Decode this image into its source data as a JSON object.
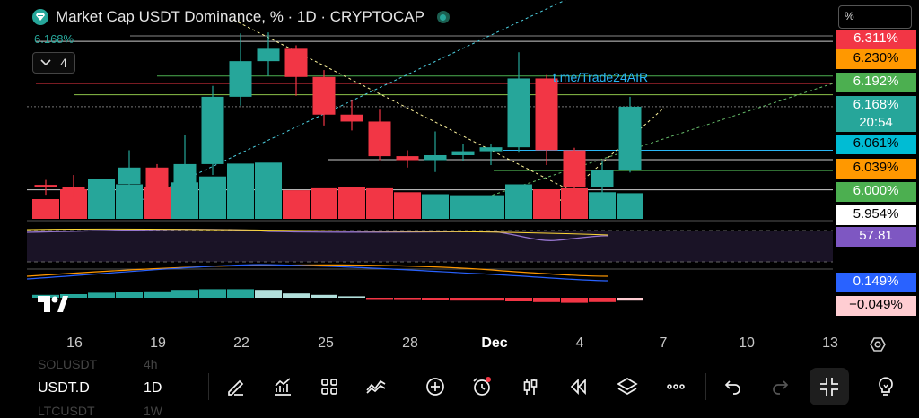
{
  "header": {
    "title": "Market Cap USDT Dominance, % · 1D · CRYPTOCAP",
    "legend_value": "6.168%",
    "indicator_count": "4",
    "scale_button": "%"
  },
  "annotation": "t.me/Trade24AIR",
  "price_tags": [
    {
      "label": "6.311%",
      "bg": "#f23645",
      "fg": "#ffffff"
    },
    {
      "label": "6.230%",
      "bg": "#ff9800",
      "fg": "#000000"
    },
    {
      "label": "6.192%",
      "bg": "#4caf50",
      "fg": "#ffffff"
    },
    {
      "label": "6.168%",
      "bg": "#26a69a",
      "fg": "#ffffff"
    },
    {
      "label": "20:54",
      "bg": "#26a69a",
      "fg": "#ffffff"
    },
    {
      "label": "6.061%",
      "bg": "#00bcd4",
      "fg": "#000000"
    },
    {
      "label": "6.039%",
      "bg": "#ff9800",
      "fg": "#000000"
    },
    {
      "label": "6.000%",
      "bg": "#4caf50",
      "fg": "#ffffff"
    },
    {
      "label": "5.954%",
      "bg": "#ffffff",
      "fg": "#000000"
    },
    {
      "label": "57.81",
      "bg": "#7e57c2",
      "fg": "#ffffff"
    },
    {
      "label": "0.149%",
      "bg": "#2962ff",
      "fg": "#ffffff"
    },
    {
      "label": "−0.049%",
      "bg": "#ffcdd2",
      "fg": "#000000"
    }
  ],
  "x_axis": [
    "16",
    "19",
    "22",
    "25",
    "28",
    "Dec",
    "4",
    "7",
    "10",
    "13"
  ],
  "bottom_bar": {
    "symbol": "USDT.D",
    "interval": "1D",
    "ghost_above_symbol": "SOLUSDT",
    "ghost_above_interval": "4h",
    "ghost_below_symbol": "LTCUSDT",
    "ghost_below_interval": "1W"
  },
  "colors": {
    "up": "#26a69a",
    "down": "#f23645"
  },
  "chart_data": {
    "type": "candlestick",
    "unit": "%",
    "candles": [
      {
        "o": 6.01,
        "h": 6.02,
        "l": 5.99,
        "c": 6.005
      },
      {
        "o": 6.005,
        "h": 6.03,
        "l": 5.985,
        "c": 6.0
      },
      {
        "o": 6.0,
        "h": 6.02,
        "l": 5.975,
        "c": 6.012
      },
      {
        "o": 6.012,
        "h": 6.08,
        "l": 5.99,
        "c": 6.045
      },
      {
        "o": 6.045,
        "h": 6.052,
        "l": 5.96,
        "c": 5.988
      },
      {
        "o": 5.988,
        "h": 6.11,
        "l": 5.975,
        "c": 6.052
      },
      {
        "o": 6.052,
        "h": 6.21,
        "l": 6.03,
        "c": 6.188
      },
      {
        "o": 6.188,
        "h": 6.316,
        "l": 6.17,
        "c": 6.26
      },
      {
        "o": 6.26,
        "h": 6.318,
        "l": 6.23,
        "c": 6.285
      },
      {
        "o": 6.285,
        "h": 6.292,
        "l": 6.19,
        "c": 6.228
      },
      {
        "o": 6.228,
        "h": 6.242,
        "l": 6.13,
        "c": 6.152
      },
      {
        "o": 6.152,
        "h": 6.182,
        "l": 6.12,
        "c": 6.138
      },
      {
        "o": 6.138,
        "h": 6.162,
        "l": 6.06,
        "c": 6.068
      },
      {
        "o": 6.068,
        "h": 6.08,
        "l": 6.045,
        "c": 6.06
      },
      {
        "o": 6.06,
        "h": 6.118,
        "l": 6.036,
        "c": 6.07
      },
      {
        "o": 6.07,
        "h": 6.092,
        "l": 6.058,
        "c": 6.078
      },
      {
        "o": 6.078,
        "h": 6.092,
        "l": 6.05,
        "c": 6.086
      },
      {
        "o": 6.086,
        "h": 6.278,
        "l": 6.075,
        "c": 6.225
      },
      {
        "o": 6.225,
        "h": 6.232,
        "l": 6.05,
        "c": 6.08
      },
      {
        "o": 6.08,
        "h": 6.085,
        "l": 5.995,
        "c": 6.005
      },
      {
        "o": 6.005,
        "h": 6.058,
        "l": 5.988,
        "c": 6.04
      },
      {
        "o": 6.04,
        "h": 6.188,
        "l": 6.035,
        "c": 6.168
      }
    ],
    "volume": [
      2,
      3,
      4,
      3.5,
      3.2,
      3.7,
      4.3,
      5.6,
      5.7,
      2.9,
      3.1,
      3.2,
      3.1,
      2.7,
      2.5,
      2.4,
      2.4,
      3.5,
      3.0,
      3.1,
      2.7,
      2.6
    ],
    "histogram": [
      0.2,
      0.25,
      0.35,
      0.4,
      0.45,
      0.55,
      0.6,
      0.6,
      0.55,
      0.3,
      0.2,
      0.1,
      -0.05,
      -0.1,
      -0.15,
      -0.2,
      -0.2,
      -0.25,
      -0.3,
      -0.35,
      -0.3,
      -0.2
    ],
    "rsi_value": 57.81
  }
}
